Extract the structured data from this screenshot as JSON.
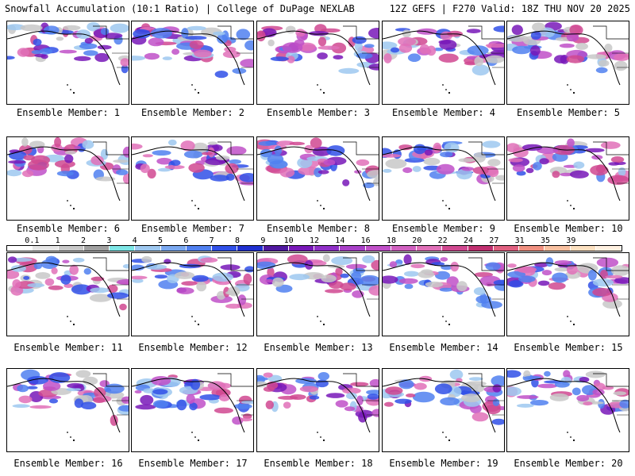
{
  "header": {
    "left": "Snowfall Accumulation (10:1 Ratio) | College of DuPage NEXLAB",
    "right": "12Z GEFS | F270 Valid: 18Z THU NOV 20 2025"
  },
  "members": [
    {
      "label": "Ensemble Member: 1"
    },
    {
      "label": "Ensemble Member: 2"
    },
    {
      "label": "Ensemble Member: 3"
    },
    {
      "label": "Ensemble Member: 4"
    },
    {
      "label": "Ensemble Member: 5"
    },
    {
      "label": "Ensemble Member: 6"
    },
    {
      "label": "Ensemble Member: 7"
    },
    {
      "label": "Ensemble Member: 8"
    },
    {
      "label": "Ensemble Member: 9"
    },
    {
      "label": "Ensemble Member: 10"
    },
    {
      "label": "Ensemble Member: 11"
    },
    {
      "label": "Ensemble Member: 12"
    },
    {
      "label": "Ensemble Member: 13"
    },
    {
      "label": "Ensemble Member: 14"
    },
    {
      "label": "Ensemble Member: 15"
    },
    {
      "label": "Ensemble Member: 16"
    },
    {
      "label": "Ensemble Member: 17"
    },
    {
      "label": "Ensemble Member: 18"
    },
    {
      "label": "Ensemble Member: 19"
    },
    {
      "label": "Ensemble Member: 20"
    }
  ],
  "scale": {
    "labels": [
      "0.1",
      "1",
      "2",
      "3",
      "4",
      "5",
      "6",
      "7",
      "8",
      "9",
      "10",
      "12",
      "14",
      "16",
      "18",
      "20",
      "22",
      "24",
      "27",
      "31",
      "35",
      "39"
    ],
    "colors": [
      "#ffffff",
      "#e6e6e6",
      "#c8c8c8",
      "#a0a0a0",
      "#7ee6e6",
      "#9ec8f0",
      "#7aa8f0",
      "#5080f0",
      "#3050e8",
      "#2030d0",
      "#5018a0",
      "#7818b8",
      "#9030c8",
      "#a840c8",
      "#c050c8",
      "#d060c0",
      "#e070b8",
      "#d04890",
      "#c03070",
      "#e06080",
      "#f09080",
      "#f8c0a0",
      "#fce0c0",
      "#fff0e0"
    ]
  }
}
